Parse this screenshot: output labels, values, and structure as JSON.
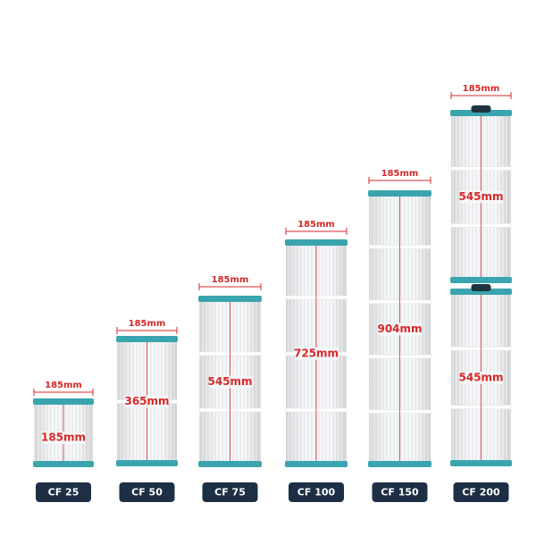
{
  "products": [
    {
      "name": "CF 25",
      "width": "185mm",
      "heights": [
        "185mm"
      ]
    },
    {
      "name": "CF 50",
      "width": "185mm",
      "heights": [
        "365mm"
      ]
    },
    {
      "name": "CF 75",
      "width": "185mm",
      "heights": [
        "545mm"
      ]
    },
    {
      "name": "CF 100",
      "width": "185mm",
      "heights": [
        "725mm"
      ]
    },
    {
      "name": "CF 150",
      "width": "185mm",
      "heights": [
        "904mm"
      ]
    },
    {
      "name": "CF 200",
      "width": "185mm",
      "heights": [
        "545mm",
        "545mm"
      ]
    }
  ]
}
